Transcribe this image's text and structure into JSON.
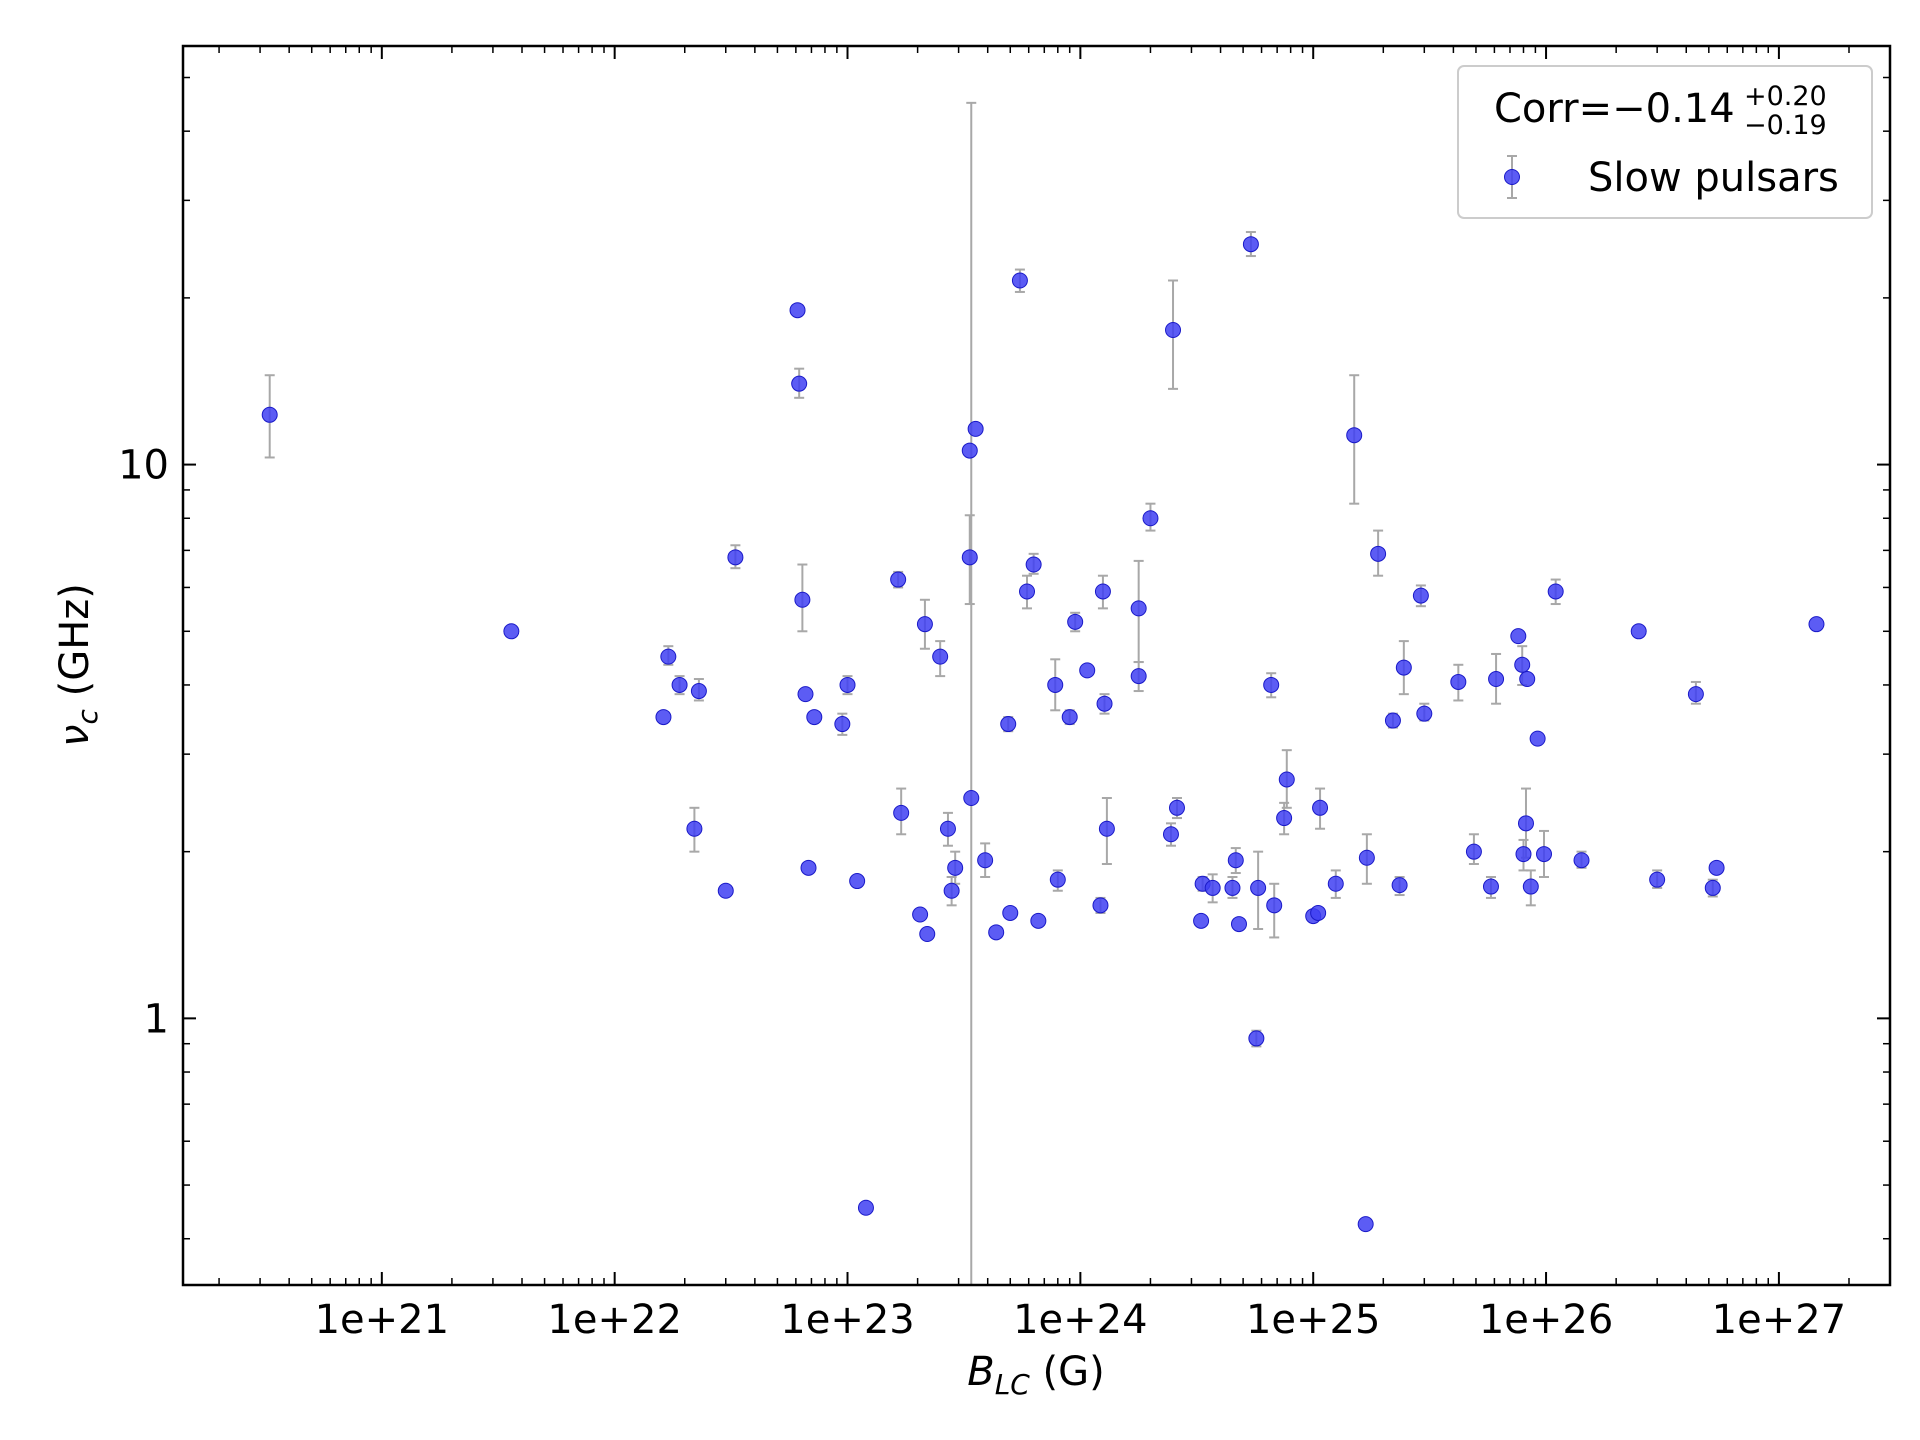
{
  "chart_data": {
    "type": "scatter",
    "title": "",
    "xlabel": {
      "base": "B",
      "subscript": "LC",
      "unit": " (G)"
    },
    "ylabel": {
      "base": "ν",
      "subscript": "c",
      "unit": " (GHz)"
    },
    "xscale": "log",
    "yscale": "log",
    "xlim": [
      1.4e+20,
      3e+27
    ],
    "ylim": [
      0.33,
      57
    ],
    "x_ticks": [
      {
        "value": 1e+21,
        "label": "1e+21"
      },
      {
        "value": 1e+22,
        "label": "1e+22"
      },
      {
        "value": 1e+23,
        "label": "1e+23"
      },
      {
        "value": 1e+24,
        "label": "1e+24"
      },
      {
        "value": 1e+25,
        "label": "1e+25"
      },
      {
        "value": 1e+26,
        "label": "1e+26"
      },
      {
        "value": 1e+27,
        "label": "1e+27"
      }
    ],
    "y_ticks": [
      {
        "value": 1,
        "label": "1"
      },
      {
        "value": 10,
        "label": "10"
      }
    ],
    "grid": false,
    "legend": {
      "placement": "top-right",
      "corr_prefix": "Corr=−0.14",
      "corr_plus": "+0.20",
      "corr_minus": "−0.19"
    },
    "marker_color": "#3f3ff2",
    "marker_edge": "#1a1ac8",
    "errorbar_color": "#a8a8a8",
    "series": [
      {
        "name": "Slow pulsars",
        "points": [
          {
            "x": 3.3e+20,
            "y": 12.3,
            "ylo": 10.3,
            "yhi": 14.5
          },
          {
            "x": 3.6e+21,
            "y": 5.0
          },
          {
            "x": 1.62e+22,
            "y": 3.5
          },
          {
            "x": 1.7e+22,
            "y": 4.5,
            "ylo": 4.35,
            "yhi": 4.7
          },
          {
            "x": 1.9e+22,
            "y": 4.0,
            "ylo": 3.85,
            "yhi": 4.15
          },
          {
            "x": 2.2e+22,
            "y": 2.2,
            "ylo": 2.0,
            "yhi": 2.4
          },
          {
            "x": 2.3e+22,
            "y": 3.9,
            "ylo": 3.75,
            "yhi": 4.1
          },
          {
            "x": 3e+22,
            "y": 1.7
          },
          {
            "x": 3.3e+22,
            "y": 6.8,
            "ylo": 6.5,
            "yhi": 7.15
          },
          {
            "x": 6.1e+22,
            "y": 19.0
          },
          {
            "x": 6.2e+22,
            "y": 14.0,
            "ylo": 13.2,
            "yhi": 14.9
          },
          {
            "x": 6.4e+22,
            "y": 5.7,
            "ylo": 5.0,
            "yhi": 6.6
          },
          {
            "x": 6.6e+22,
            "y": 3.85
          },
          {
            "x": 6.8e+22,
            "y": 1.87
          },
          {
            "x": 7.2e+22,
            "y": 3.5
          },
          {
            "x": 9.5e+22,
            "y": 3.4,
            "ylo": 3.25,
            "yhi": 3.55
          },
          {
            "x": 1e+23,
            "y": 4.0,
            "ylo": 3.85,
            "yhi": 4.15
          },
          {
            "x": 1.1e+23,
            "y": 1.77
          },
          {
            "x": 1.2e+23,
            "y": 0.455
          },
          {
            "x": 1.65e+23,
            "y": 6.2,
            "ylo": 6.0,
            "yhi": 6.4
          },
          {
            "x": 1.7e+23,
            "y": 2.35,
            "ylo": 2.15,
            "yhi": 2.6
          },
          {
            "x": 2.05e+23,
            "y": 1.54
          },
          {
            "x": 2.15e+23,
            "y": 5.15,
            "ylo": 4.65,
            "yhi": 5.7
          },
          {
            "x": 2.2e+23,
            "y": 1.42
          },
          {
            "x": 2.5e+23,
            "y": 4.5,
            "ylo": 4.15,
            "yhi": 4.8
          },
          {
            "x": 2.7e+23,
            "y": 2.2,
            "ylo": 2.05,
            "yhi": 2.35
          },
          {
            "x": 2.8e+23,
            "y": 1.7,
            "ylo": 1.6,
            "yhi": 1.8
          },
          {
            "x": 2.9e+23,
            "y": 1.87,
            "ylo": 1.75,
            "yhi": 2.0
          },
          {
            "x": 3.35e+23,
            "y": 10.6
          },
          {
            "x": 3.35e+23,
            "y": 6.8,
            "ylo": 5.6,
            "yhi": 8.1
          },
          {
            "x": 3.4e+23,
            "y": 2.5,
            "ylo": 0.33,
            "yhi": 45.0
          },
          {
            "x": 3.55e+23,
            "y": 11.6
          },
          {
            "x": 3.9e+23,
            "y": 1.93,
            "ylo": 1.8,
            "yhi": 2.07
          },
          {
            "x": 4.35e+23,
            "y": 1.43
          },
          {
            "x": 4.9e+23,
            "y": 3.4,
            "ylo": 3.3,
            "yhi": 3.5
          },
          {
            "x": 5e+23,
            "y": 1.55
          },
          {
            "x": 5.5e+23,
            "y": 21.5,
            "ylo": 20.5,
            "yhi": 22.5
          },
          {
            "x": 5.9e+23,
            "y": 5.9,
            "ylo": 5.5,
            "yhi": 6.3
          },
          {
            "x": 6.3e+23,
            "y": 6.6,
            "ylo": 6.35,
            "yhi": 6.9
          },
          {
            "x": 6.6e+23,
            "y": 1.5
          },
          {
            "x": 7.8e+23,
            "y": 4.0,
            "ylo": 3.6,
            "yhi": 4.45
          },
          {
            "x": 8e+23,
            "y": 1.78,
            "ylo": 1.7,
            "yhi": 1.85
          },
          {
            "x": 9e+23,
            "y": 3.5,
            "ylo": 3.4,
            "yhi": 3.6
          },
          {
            "x": 9.5e+23,
            "y": 5.2,
            "ylo": 5.0,
            "yhi": 5.4
          },
          {
            "x": 1.07e+24,
            "y": 4.25
          },
          {
            "x": 1.22e+24,
            "y": 1.6,
            "ylo": 1.55,
            "yhi": 1.65
          },
          {
            "x": 1.25e+24,
            "y": 5.9,
            "ylo": 5.5,
            "yhi": 6.3
          },
          {
            "x": 1.27e+24,
            "y": 3.7,
            "ylo": 3.55,
            "yhi": 3.85
          },
          {
            "x": 1.3e+24,
            "y": 2.2,
            "ylo": 1.9,
            "yhi": 2.5
          },
          {
            "x": 1.78e+24,
            "y": 5.5,
            "ylo": 4.4,
            "yhi": 6.7
          },
          {
            "x": 1.78e+24,
            "y": 4.15,
            "ylo": 3.9,
            "yhi": 4.4
          },
          {
            "x": 2e+24,
            "y": 8.0,
            "ylo": 7.6,
            "yhi": 8.5
          },
          {
            "x": 2.45e+24,
            "y": 2.15,
            "ylo": 2.05,
            "yhi": 2.25
          },
          {
            "x": 2.5e+24,
            "y": 17.5,
            "ylo": 13.7,
            "yhi": 21.5
          },
          {
            "x": 2.6e+24,
            "y": 2.4,
            "ylo": 2.3,
            "yhi": 2.5
          },
          {
            "x": 3.3e+24,
            "y": 1.5
          },
          {
            "x": 3.35e+24,
            "y": 1.75,
            "ylo": 1.7,
            "yhi": 1.8
          },
          {
            "x": 3.7e+24,
            "y": 1.72,
            "ylo": 1.62,
            "yhi": 1.82
          },
          {
            "x": 4.5e+24,
            "y": 1.72,
            "ylo": 1.65,
            "yhi": 1.8
          },
          {
            "x": 4.65e+24,
            "y": 1.93,
            "ylo": 1.83,
            "yhi": 2.03
          },
          {
            "x": 4.8e+24,
            "y": 1.48
          },
          {
            "x": 5.4e+24,
            "y": 25.0,
            "ylo": 23.8,
            "yhi": 26.3
          },
          {
            "x": 5.7e+24,
            "y": 0.92,
            "ylo": 0.89,
            "yhi": 0.95
          },
          {
            "x": 5.8e+24,
            "y": 1.72,
            "ylo": 1.45,
            "yhi": 2.0
          },
          {
            "x": 6.6e+24,
            "y": 4.0,
            "ylo": 3.8,
            "yhi": 4.2
          },
          {
            "x": 6.8e+24,
            "y": 1.6,
            "ylo": 1.4,
            "yhi": 1.75
          },
          {
            "x": 7.5e+24,
            "y": 2.3,
            "ylo": 2.15,
            "yhi": 2.45
          },
          {
            "x": 7.7e+24,
            "y": 2.7,
            "ylo": 2.4,
            "yhi": 3.05
          },
          {
            "x": 1e+25,
            "y": 1.53
          },
          {
            "x": 1.05e+25,
            "y": 1.55
          },
          {
            "x": 1.07e+25,
            "y": 2.4,
            "ylo": 2.2,
            "yhi": 2.6
          },
          {
            "x": 1.25e+25,
            "y": 1.75,
            "ylo": 1.65,
            "yhi": 1.85
          },
          {
            "x": 1.5e+25,
            "y": 11.3,
            "ylo": 8.5,
            "yhi": 14.5
          },
          {
            "x": 1.68e+25,
            "y": 0.425
          },
          {
            "x": 1.7e+25,
            "y": 1.95,
            "ylo": 1.75,
            "yhi": 2.15
          },
          {
            "x": 1.9e+25,
            "y": 6.9,
            "ylo": 6.3,
            "yhi": 7.6
          },
          {
            "x": 2.2e+25,
            "y": 3.45,
            "ylo": 3.35,
            "yhi": 3.55
          },
          {
            "x": 2.35e+25,
            "y": 1.74,
            "ylo": 1.67,
            "yhi": 1.8
          },
          {
            "x": 2.45e+25,
            "y": 4.3,
            "ylo": 3.85,
            "yhi": 4.8
          },
          {
            "x": 2.9e+25,
            "y": 5.8,
            "ylo": 5.55,
            "yhi": 6.05
          },
          {
            "x": 3e+25,
            "y": 3.55,
            "ylo": 3.45,
            "yhi": 3.7
          },
          {
            "x": 4.2e+25,
            "y": 4.05,
            "ylo": 3.75,
            "yhi": 4.35
          },
          {
            "x": 4.9e+25,
            "y": 2.0,
            "ylo": 1.9,
            "yhi": 2.15
          },
          {
            "x": 5.8e+25,
            "y": 1.73,
            "ylo": 1.65,
            "yhi": 1.8
          },
          {
            "x": 6.1e+25,
            "y": 4.1,
            "ylo": 3.7,
            "yhi": 4.55
          },
          {
            "x": 7.6e+25,
            "y": 4.9
          },
          {
            "x": 7.9e+25,
            "y": 4.35,
            "ylo": 4.0,
            "yhi": 4.7
          },
          {
            "x": 8e+25,
            "y": 1.98,
            "ylo": 1.85,
            "yhi": 2.1
          },
          {
            "x": 8.2e+25,
            "y": 2.25,
            "ylo": 1.95,
            "yhi": 2.6
          },
          {
            "x": 8.3e+25,
            "y": 4.1
          },
          {
            "x": 8.6e+25,
            "y": 1.73,
            "ylo": 1.6,
            "yhi": 1.85
          },
          {
            "x": 9.2e+25,
            "y": 3.2
          },
          {
            "x": 9.8e+25,
            "y": 1.98,
            "ylo": 1.8,
            "yhi": 2.18
          },
          {
            "x": 1.1e+26,
            "y": 5.9,
            "ylo": 5.6,
            "yhi": 6.2
          },
          {
            "x": 1.42e+26,
            "y": 1.93,
            "ylo": 1.87,
            "yhi": 2.0
          },
          {
            "x": 2.5e+26,
            "y": 5.0
          },
          {
            "x": 3e+26,
            "y": 1.78,
            "ylo": 1.72,
            "yhi": 1.85
          },
          {
            "x": 4.4e+26,
            "y": 3.85,
            "ylo": 3.7,
            "yhi": 4.05
          },
          {
            "x": 5.2e+26,
            "y": 1.72,
            "ylo": 1.66,
            "yhi": 1.78
          },
          {
            "x": 5.4e+26,
            "y": 1.87
          },
          {
            "x": 1.45e+27,
            "y": 5.15
          }
        ]
      }
    ]
  }
}
